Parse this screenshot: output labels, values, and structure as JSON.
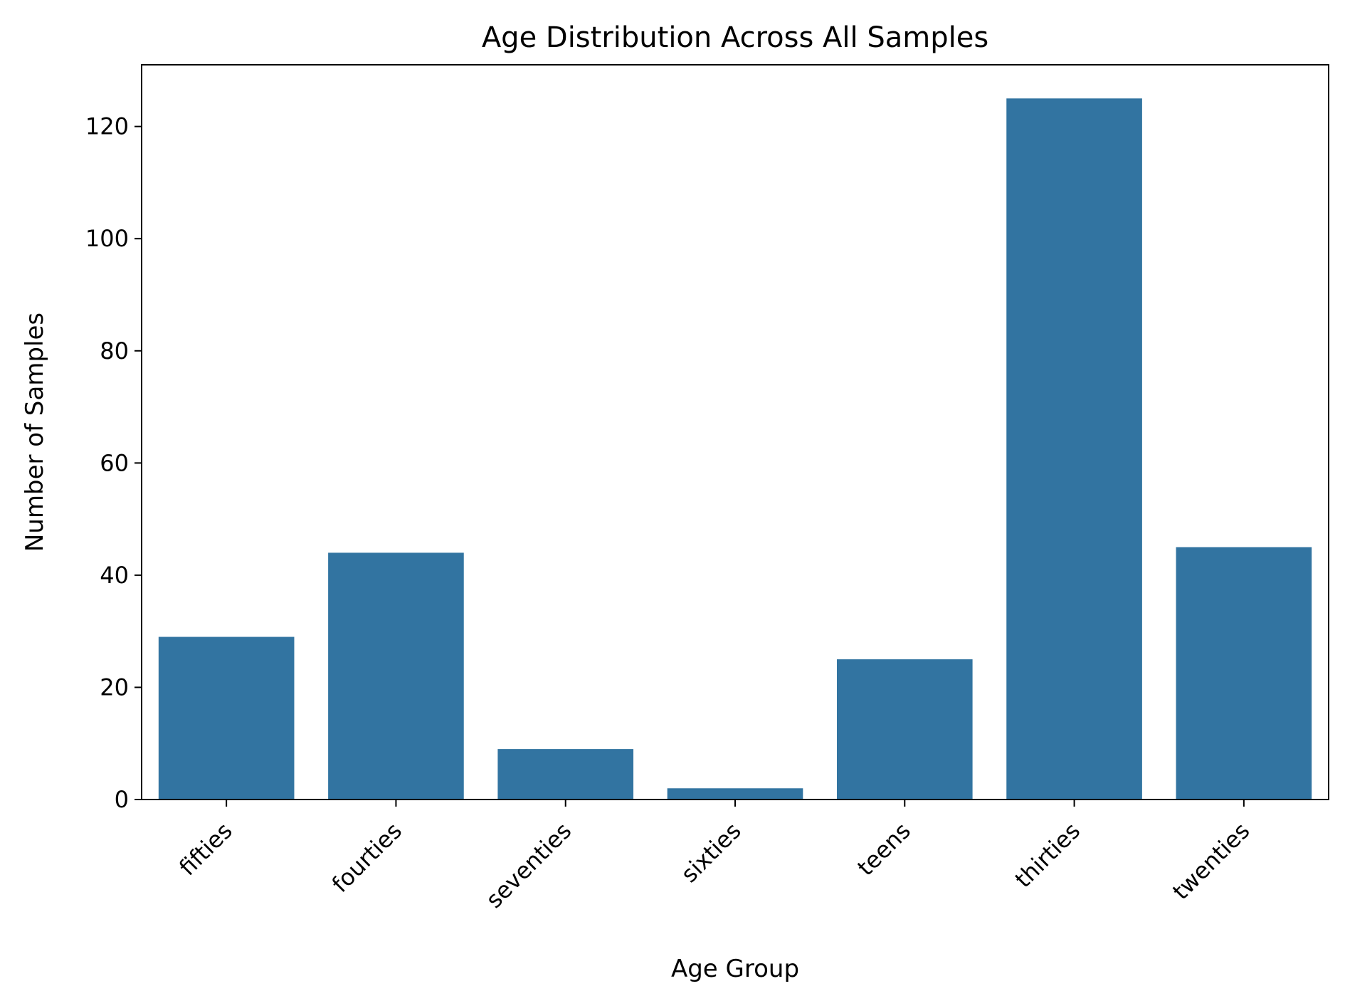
{
  "chart_data": {
    "type": "bar",
    "title": "Age Distribution Across All Samples",
    "xlabel": "Age Group",
    "ylabel": "Number of Samples",
    "categories": [
      "fifties",
      "fourties",
      "seventies",
      "sixties",
      "teens",
      "thirties",
      "twenties"
    ],
    "values": [
      29,
      44,
      9,
      2,
      25,
      125,
      45
    ],
    "ylim": [
      0,
      131
    ],
    "yticks": [
      0,
      20,
      40,
      60,
      80,
      100,
      120
    ],
    "grid": false,
    "legend": "none",
    "bar_color": "#3274a1",
    "xtick_rotation": 45
  }
}
